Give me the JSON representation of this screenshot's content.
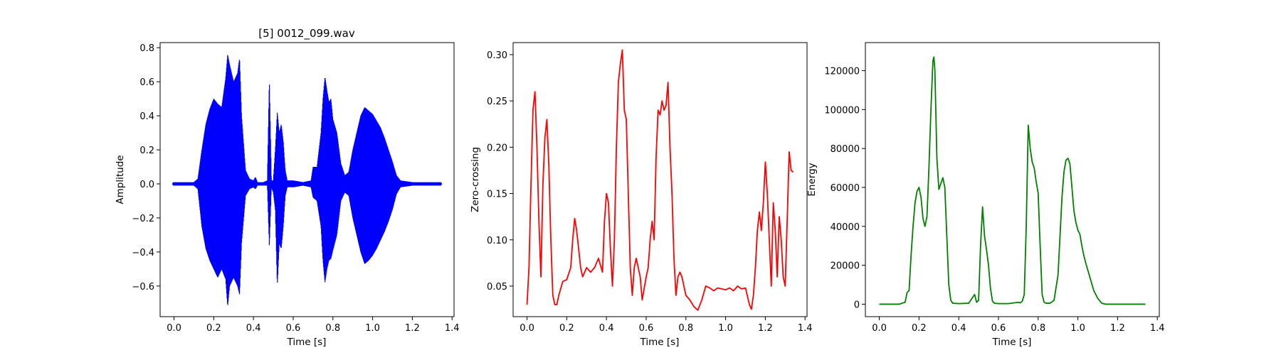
{
  "chart_data": [
    {
      "type": "line",
      "title": "[5] 0012_099.wav",
      "xlabel": "Time [s]",
      "ylabel": "Amplitude",
      "xlim": [
        -0.07,
        1.41
      ],
      "ylim": [
        -0.78,
        0.83
      ],
      "xticks": [
        0.0,
        0.2,
        0.4,
        0.6,
        0.8,
        1.0,
        1.2,
        1.4
      ],
      "xtick_labels": [
        "0.0",
        "0.2",
        "0.4",
        "0.6",
        "0.8",
        "1.0",
        "1.2",
        "1.4"
      ],
      "yticks": [
        -0.6,
        -0.4,
        -0.2,
        0.0,
        0.2,
        0.4,
        0.6,
        0.8
      ],
      "ytick_labels": [
        "−0.6",
        "−0.4",
        "−0.2",
        "0.0",
        "0.2",
        "0.4",
        "0.6",
        "0.8"
      ],
      "color": "#0000ff",
      "grid": false,
      "series": [
        {
          "x": [
            0.0,
            0.1,
            0.12,
            0.14,
            0.16,
            0.18,
            0.2,
            0.22,
            0.24,
            0.26,
            0.27,
            0.28,
            0.3,
            0.32,
            0.33,
            0.34,
            0.36,
            0.38,
            0.4,
            0.41,
            0.42,
            0.45,
            0.47,
            0.48,
            0.49,
            0.5,
            0.51,
            0.52,
            0.53,
            0.54,
            0.55,
            0.56,
            0.57,
            0.58,
            0.6,
            0.65,
            0.69,
            0.7,
            0.72,
            0.74,
            0.75,
            0.76,
            0.77,
            0.78,
            0.79,
            0.8,
            0.82,
            0.84,
            0.86,
            0.88,
            0.9,
            0.92,
            0.94,
            0.96,
            0.98,
            1.0,
            1.02,
            1.04,
            1.06,
            1.08,
            1.1,
            1.12,
            1.14,
            1.2,
            1.34
          ],
          "upper": [
            0.01,
            0.01,
            0.03,
            0.2,
            0.35,
            0.44,
            0.5,
            0.47,
            0.45,
            0.62,
            0.76,
            0.7,
            0.6,
            0.65,
            0.74,
            0.4,
            0.08,
            0.03,
            0.02,
            0.04,
            0.01,
            0.01,
            0.02,
            0.62,
            0.02,
            0.02,
            0.2,
            0.42,
            0.3,
            0.35,
            0.25,
            0.08,
            0.02,
            0.02,
            0.02,
            0.01,
            0.02,
            0.1,
            0.1,
            0.3,
            0.5,
            0.63,
            0.55,
            0.48,
            0.5,
            0.38,
            0.3,
            0.12,
            0.05,
            0.07,
            0.2,
            0.3,
            0.4,
            0.45,
            0.43,
            0.41,
            0.37,
            0.33,
            0.27,
            0.2,
            0.13,
            0.05,
            0.02,
            0.01,
            0.01
          ],
          "lower": [
            -0.01,
            -0.01,
            -0.03,
            -0.25,
            -0.38,
            -0.45,
            -0.5,
            -0.55,
            -0.5,
            -0.56,
            -0.72,
            -0.6,
            -0.55,
            -0.6,
            -0.65,
            -0.35,
            -0.07,
            -0.03,
            -0.02,
            -0.03,
            -0.01,
            -0.01,
            -0.01,
            -0.37,
            -0.02,
            -0.05,
            -0.15,
            -0.6,
            -0.35,
            -0.38,
            -0.25,
            -0.07,
            -0.02,
            -0.02,
            -0.02,
            -0.01,
            -0.02,
            -0.08,
            -0.1,
            -0.25,
            -0.45,
            -0.58,
            -0.5,
            -0.45,
            -0.44,
            -0.39,
            -0.3,
            -0.1,
            -0.05,
            -0.07,
            -0.2,
            -0.3,
            -0.4,
            -0.47,
            -0.45,
            -0.42,
            -0.38,
            -0.33,
            -0.28,
            -0.22,
            -0.15,
            -0.06,
            -0.02,
            -0.01,
            -0.01
          ]
        }
      ]
    },
    {
      "type": "line",
      "title": "",
      "xlabel": "Time [s]",
      "ylabel": "Zero-crossing",
      "xlim": [
        -0.07,
        1.41
      ],
      "ylim": [
        0.017,
        0.313
      ],
      "xticks": [
        0.0,
        0.2,
        0.4,
        0.6,
        0.8,
        1.0,
        1.2,
        1.4
      ],
      "xtick_labels": [
        "0.0",
        "0.2",
        "0.4",
        "0.6",
        "0.8",
        "1.0",
        "1.2",
        "1.4"
      ],
      "yticks": [
        0.05,
        0.1,
        0.15,
        0.2,
        0.25,
        0.3
      ],
      "ytick_labels": [
        "0.05",
        "0.10",
        "0.15",
        "0.20",
        "0.25",
        "0.30"
      ],
      "color": "#ff0000",
      "grid": false,
      "series": [
        {
          "x": [
            0.0,
            0.01,
            0.02,
            0.03,
            0.04,
            0.05,
            0.06,
            0.07,
            0.08,
            0.09,
            0.1,
            0.11,
            0.12,
            0.13,
            0.14,
            0.15,
            0.16,
            0.18,
            0.2,
            0.22,
            0.23,
            0.24,
            0.25,
            0.26,
            0.27,
            0.28,
            0.3,
            0.32,
            0.34,
            0.36,
            0.38,
            0.39,
            0.4,
            0.41,
            0.42,
            0.43,
            0.44,
            0.45,
            0.46,
            0.47,
            0.48,
            0.49,
            0.5,
            0.51,
            0.52,
            0.53,
            0.54,
            0.55,
            0.56,
            0.57,
            0.58,
            0.6,
            0.61,
            0.62,
            0.63,
            0.64,
            0.65,
            0.66,
            0.67,
            0.68,
            0.69,
            0.7,
            0.71,
            0.72,
            0.73,
            0.74,
            0.75,
            0.76,
            0.77,
            0.78,
            0.8,
            0.82,
            0.84,
            0.86,
            0.88,
            0.9,
            0.92,
            0.94,
            0.96,
            0.98,
            1.0,
            1.02,
            1.04,
            1.06,
            1.08,
            1.1,
            1.12,
            1.13,
            1.14,
            1.15,
            1.16,
            1.17,
            1.18,
            1.19,
            1.2,
            1.21,
            1.22,
            1.23,
            1.24,
            1.25,
            1.26,
            1.27,
            1.28,
            1.29,
            1.3,
            1.31,
            1.32,
            1.33,
            1.34
          ],
          "y": [
            0.03,
            0.07,
            0.16,
            0.24,
            0.26,
            0.2,
            0.12,
            0.06,
            0.16,
            0.21,
            0.23,
            0.18,
            0.1,
            0.04,
            0.03,
            0.03,
            0.04,
            0.055,
            0.057,
            0.07,
            0.1,
            0.123,
            0.11,
            0.09,
            0.07,
            0.06,
            0.07,
            0.065,
            0.07,
            0.08,
            0.065,
            0.12,
            0.15,
            0.14,
            0.09,
            0.05,
            0.1,
            0.2,
            0.27,
            0.29,
            0.305,
            0.24,
            0.23,
            0.15,
            0.07,
            0.04,
            0.07,
            0.08,
            0.07,
            0.06,
            0.035,
            0.06,
            0.07,
            0.1,
            0.12,
            0.1,
            0.19,
            0.24,
            0.235,
            0.25,
            0.24,
            0.245,
            0.27,
            0.2,
            0.15,
            0.08,
            0.04,
            0.06,
            0.065,
            0.06,
            0.04,
            0.035,
            0.028,
            0.024,
            0.035,
            0.05,
            0.048,
            0.045,
            0.048,
            0.047,
            0.046,
            0.048,
            0.045,
            0.05,
            0.047,
            0.048,
            0.03,
            0.025,
            0.04,
            0.07,
            0.11,
            0.13,
            0.11,
            0.14,
            0.184,
            0.15,
            0.1,
            0.05,
            0.14,
            0.11,
            0.06,
            0.125,
            0.1,
            0.06,
            0.05,
            0.12,
            0.195,
            0.175,
            0.173
          ]
        }
      ]
    },
    {
      "type": "line",
      "title": "",
      "xlabel": "Time [s]",
      "ylabel": "Energy",
      "xlim": [
        -0.07,
        1.41
      ],
      "ylim": [
        -6400,
        134400
      ],
      "xticks": [
        0.0,
        0.2,
        0.4,
        0.6,
        0.8,
        1.0,
        1.2,
        1.4
      ],
      "xtick_labels": [
        "0.0",
        "0.2",
        "0.4",
        "0.6",
        "0.8",
        "1.0",
        "1.2",
        "1.4"
      ],
      "yticks": [
        0,
        20000,
        40000,
        60000,
        80000,
        100000,
        120000
      ],
      "ytick_labels": [
        "0",
        "20000",
        "40000",
        "60000",
        "80000",
        "100000",
        "120000"
      ],
      "color": "#008000",
      "grid": false,
      "series": [
        {
          "x": [
            0.0,
            0.1,
            0.13,
            0.14,
            0.15,
            0.16,
            0.17,
            0.18,
            0.19,
            0.2,
            0.21,
            0.22,
            0.23,
            0.24,
            0.25,
            0.26,
            0.27,
            0.275,
            0.28,
            0.29,
            0.3,
            0.31,
            0.32,
            0.33,
            0.34,
            0.35,
            0.36,
            0.37,
            0.4,
            0.45,
            0.48,
            0.49,
            0.5,
            0.51,
            0.52,
            0.53,
            0.54,
            0.55,
            0.56,
            0.57,
            0.58,
            0.6,
            0.65,
            0.7,
            0.71,
            0.72,
            0.73,
            0.74,
            0.75,
            0.76,
            0.77,
            0.78,
            0.79,
            0.8,
            0.81,
            0.82,
            0.83,
            0.84,
            0.86,
            0.88,
            0.9,
            0.91,
            0.92,
            0.93,
            0.94,
            0.95,
            0.96,
            0.97,
            0.98,
            0.99,
            1.0,
            1.01,
            1.02,
            1.03,
            1.04,
            1.06,
            1.08,
            1.1,
            1.12,
            1.14,
            1.2,
            1.34
          ],
          "y": [
            0,
            0,
            1000,
            6000,
            7000,
            25000,
            40000,
            52000,
            58000,
            60000,
            55000,
            44000,
            40000,
            45000,
            70000,
            100000,
            125000,
            127000,
            120000,
            75000,
            59000,
            62000,
            65000,
            60000,
            35000,
            10000,
            2000,
            500,
            300,
            500,
            5000,
            1000,
            2000,
            30000,
            50000,
            35000,
            28000,
            20000,
            8000,
            1500,
            500,
            300,
            300,
            1000,
            700,
            1500,
            5000,
            40000,
            92000,
            80000,
            73000,
            70000,
            63000,
            57000,
            30000,
            5000,
            1000,
            500,
            500,
            2000,
            15000,
            35000,
            55000,
            68000,
            74000,
            75000,
            72000,
            60000,
            48000,
            42000,
            38000,
            36000,
            30000,
            25000,
            21000,
            14000,
            7000,
            3000,
            500,
            0,
            0,
            0
          ]
        }
      ]
    }
  ]
}
